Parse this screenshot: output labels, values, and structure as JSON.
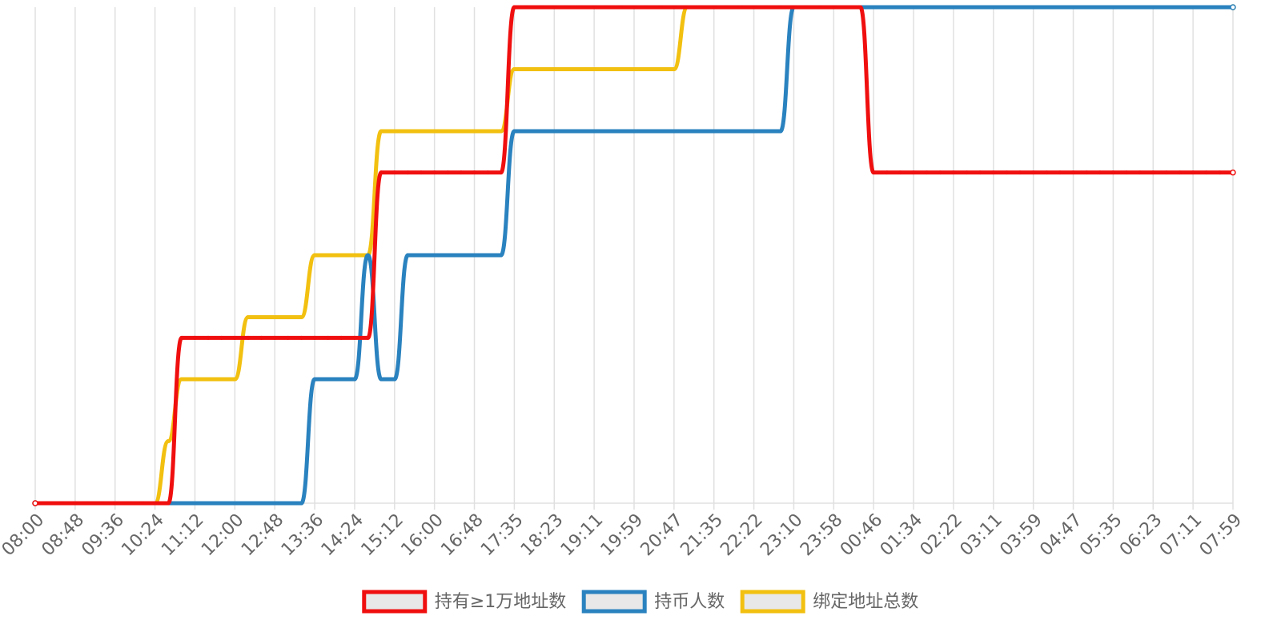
{
  "chart_data": {
    "type": "line",
    "categories": [
      "08:00",
      null,
      null,
      "08:48",
      null,
      null,
      "09:36",
      null,
      null,
      "10:24",
      null,
      null,
      "11:12",
      null,
      null,
      "12:00",
      null,
      null,
      "12:48",
      null,
      null,
      "13:36",
      null,
      null,
      "14:24",
      null,
      null,
      "15:12",
      null,
      null,
      "16:00",
      null,
      null,
      "16:48",
      null,
      null,
      "17:35",
      null,
      null,
      "18:23",
      null,
      null,
      "19:11",
      null,
      null,
      "19:59",
      null,
      null,
      "20:47",
      null,
      null,
      "21:35",
      null,
      null,
      "22:22",
      null,
      null,
      "23:10",
      null,
      null,
      "23:58",
      null,
      null,
      "00:46",
      null,
      null,
      "01:34",
      null,
      null,
      "02:22",
      null,
      null,
      "03:11",
      null,
      null,
      "03:59",
      null,
      null,
      "04:47",
      null,
      null,
      "05:35",
      null,
      null,
      "06:23",
      null,
      null,
      "07:11",
      null,
      null,
      "07:59"
    ],
    "series": [
      {
        "name": "持有≥1万地址数",
        "color": "#f00f0f",
        "values": [
          0,
          0,
          0,
          0,
          0,
          0,
          0,
          0,
          0,
          0,
          0,
          8,
          8,
          8,
          8,
          8,
          8,
          8,
          8,
          8,
          8,
          8,
          8,
          8,
          8,
          8,
          16,
          16,
          16,
          16,
          16,
          16,
          16,
          16,
          16,
          16,
          24,
          24,
          24,
          24,
          24,
          24,
          24,
          24,
          24,
          24,
          24,
          24,
          24,
          24,
          24,
          24,
          24,
          24,
          24,
          24,
          24,
          24,
          24,
          24,
          24,
          24,
          24,
          16,
          16,
          16,
          16,
          16,
          16,
          16,
          16,
          16,
          16,
          16,
          16,
          16,
          16,
          16,
          16,
          16,
          16,
          16,
          16,
          16,
          16,
          16,
          16,
          16,
          16,
          16,
          16
        ]
      },
      {
        "name": "持币人数",
        "color": "#2a82bf",
        "values": [
          0,
          0,
          0,
          0,
          0,
          0,
          0,
          0,
          0,
          0,
          0,
          0,
          0,
          0,
          0,
          0,
          0,
          0,
          0,
          0,
          0,
          6,
          6,
          6,
          6,
          12,
          6,
          6,
          12,
          12,
          12,
          12,
          12,
          12,
          12,
          12,
          18,
          18,
          18,
          18,
          18,
          18,
          18,
          18,
          18,
          18,
          18,
          18,
          18,
          18,
          18,
          18,
          18,
          18,
          18,
          18,
          18,
          24,
          24,
          24,
          24,
          24,
          24,
          24,
          24,
          24,
          24,
          24,
          24,
          24,
          24,
          24,
          24,
          24,
          24,
          24,
          24,
          24,
          24,
          24,
          24,
          24,
          24,
          24,
          24,
          24,
          24,
          24,
          24,
          24,
          24
        ]
      },
      {
        "name": "绑定地址总数",
        "color": "#f2c010",
        "values": [
          0,
          0,
          0,
          0,
          0,
          0,
          0,
          0,
          0,
          0,
          3,
          6,
          6,
          6,
          6,
          6,
          9,
          9,
          9,
          9,
          9,
          12,
          12,
          12,
          12,
          12,
          18,
          18,
          18,
          18,
          18,
          18,
          18,
          18,
          18,
          18,
          21,
          21,
          21,
          21,
          21,
          21,
          21,
          21,
          21,
          21,
          21,
          21,
          21,
          24,
          24,
          24,
          24,
          24,
          24,
          24,
          24,
          24,
          24,
          24,
          24,
          24,
          24,
          24,
          24,
          24,
          24,
          24,
          24,
          24,
          24,
          24,
          24,
          24,
          24,
          24,
          24,
          24,
          24,
          24,
          24,
          24,
          24,
          24,
          24,
          24,
          24,
          24,
          24,
          24,
          24
        ]
      }
    ],
    "ylim": [
      0,
      24
    ],
    "grid": true
  }
}
